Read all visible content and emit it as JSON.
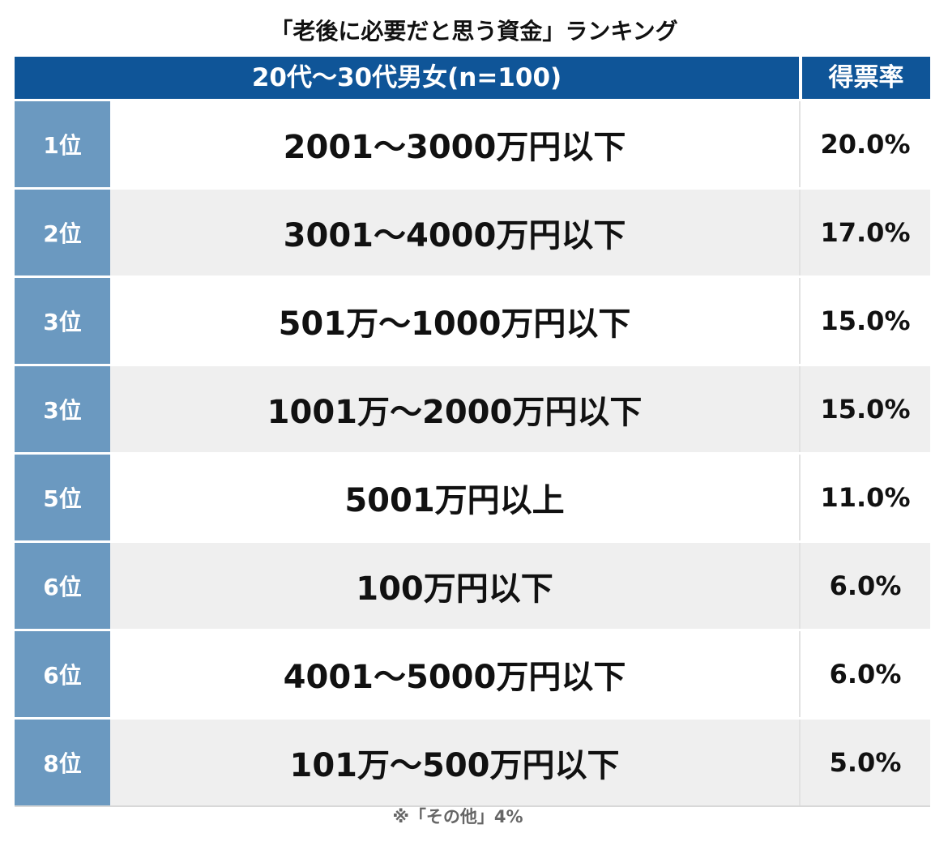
{
  "title": "「老後に必要だと思う資金」ランキング",
  "header": {
    "group_label": "20代〜30代男女(n=100)",
    "rate_label": "得票率"
  },
  "rows": [
    {
      "rank": "1位",
      "amount": "2001〜3000万円以下",
      "rate": "20.0%"
    },
    {
      "rank": "2位",
      "amount": "3001〜4000万円以下",
      "rate": "17.0%"
    },
    {
      "rank": "3位",
      "amount": "501万〜1000万円以下",
      "rate": "15.0%"
    },
    {
      "rank": "3位",
      "amount": "1001万〜2000万円以下",
      "rate": "15.0%"
    },
    {
      "rank": "5位",
      "amount": "5001万円以上",
      "rate": "11.0%"
    },
    {
      "rank": "6位",
      "amount": "100万円以下",
      "rate": "6.0%"
    },
    {
      "rank": "6位",
      "amount": "4001〜5000万円以下",
      "rate": "6.0%"
    },
    {
      "rank": "8位",
      "amount": "101万〜500万円以下",
      "rate": "5.0%"
    }
  ],
  "footnote": "※「その他」4%",
  "colors": {
    "header_bg": "#0f5598",
    "rank_bg": "#6b99c0",
    "stripe_bg": "#efefef"
  }
}
